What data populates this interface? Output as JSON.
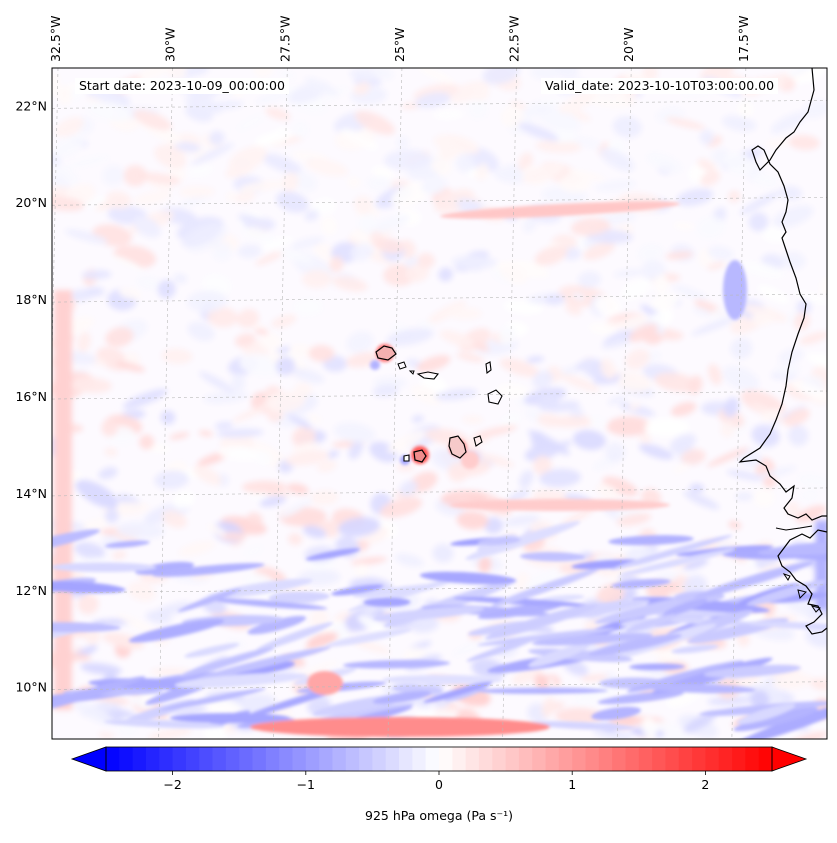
{
  "header": {
    "start_date": "Start date: 2023-10-09_00:00:00",
    "valid_date": "Valid_date: 2023-10-10T03:00:00.00"
  },
  "axes": {
    "longitude_labels": [
      "32.5°W",
      "30°W",
      "27.5°W",
      "25°W",
      "22.5°W",
      "20°W",
      "17.5°W"
    ],
    "latitude_labels": [
      "22°N",
      "20°N",
      "18°N",
      "16°N",
      "14°N",
      "12°N",
      "10°N"
    ],
    "lon_values": [
      -32.5,
      -30,
      -27.5,
      -25,
      -22.5,
      -20,
      -17.5
    ],
    "lat_values": [
      22,
      20,
      18,
      16,
      14,
      12,
      10
    ],
    "lon_range": [
      -32.5,
      -15.6
    ],
    "lat_range": [
      8.9,
      22.75
    ],
    "gridlines": true
  },
  "colorbar": {
    "label": "925 hPa omega (Pa s⁻¹)",
    "min": -2.5,
    "max": 2.5,
    "tick_values": [
      -2,
      -1,
      0,
      1,
      2
    ],
    "tick_labels": [
      "−2",
      "−1",
      "0",
      "1",
      "2"
    ],
    "extend": "both",
    "colormap": "bwr",
    "low_color": "#0000ff",
    "mid_color": "#ffffff",
    "high_color": "#ff0000"
  },
  "field": {
    "variable": "925 hPa omega",
    "overall_character": "mostly near-zero values with weak alternating positive and negative bands; stronger negative streaks in the south, positive patches near the islands and along the southern boundary"
  }
}
